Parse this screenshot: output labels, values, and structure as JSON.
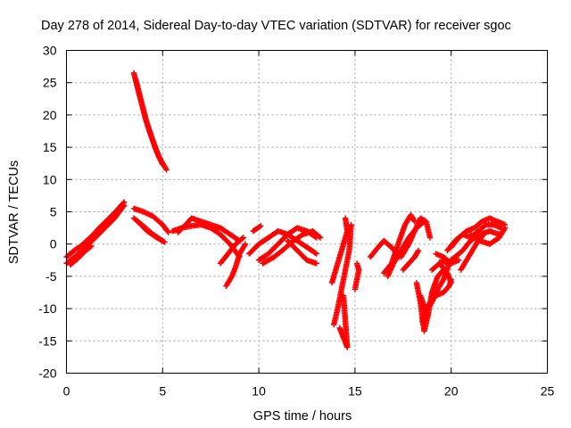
{
  "chart_data": {
    "type": "scatter",
    "title": "Day 278 of 2014, Sidereal Day-to-day VTEC variation (SDTVAR) for receiver sgoc",
    "xlabel": "GPS time / hours",
    "ylabel": "SDTVAR / TECUs",
    "xlim": [
      0,
      25
    ],
    "ylim": [
      -20,
      30
    ],
    "xticks": [
      "0",
      "5",
      "10",
      "15",
      "20",
      "25"
    ],
    "yticks": [
      "-20",
      "-15",
      "-10",
      "-5",
      "0",
      "5",
      "10",
      "15",
      "20",
      "25",
      "30"
    ],
    "grid": true,
    "marker": "+",
    "color": "#ff0000",
    "series": [
      {
        "name": "tracks",
        "tracks": [
          [
            [
              0.0,
              -3.0
            ],
            [
              0.5,
              -1.8
            ],
            [
              1.0,
              -0.5
            ],
            [
              1.5,
              1.0
            ],
            [
              2.0,
              2.5
            ],
            [
              2.5,
              4.0
            ],
            [
              3.0,
              6.0
            ]
          ],
          [
            [
              0.0,
              -2.0
            ],
            [
              0.4,
              -1.0
            ],
            [
              0.8,
              -0.2
            ],
            [
              1.3,
              1.2
            ],
            [
              1.8,
              2.8
            ],
            [
              2.4,
              4.5
            ],
            [
              3.0,
              6.5
            ]
          ],
          [
            [
              0.2,
              -3.2
            ],
            [
              0.6,
              -2.2
            ],
            [
              1.0,
              -1.0
            ],
            [
              1.3,
              -0.3
            ]
          ],
          [
            [
              3.5,
              26.5
            ],
            [
              3.8,
              23.0
            ],
            [
              4.1,
              19.5
            ],
            [
              4.4,
              16.8
            ],
            [
              4.8,
              13.5
            ],
            [
              5.2,
              11.5
            ]
          ],
          [
            [
              3.6,
              25.5
            ],
            [
              3.9,
              22.0
            ],
            [
              4.2,
              18.5
            ],
            [
              4.6,
              15.0
            ],
            [
              5.0,
              12.3
            ]
          ],
          [
            [
              3.5,
              5.5
            ],
            [
              4.0,
              5.0
            ],
            [
              4.5,
              4.3
            ],
            [
              5.0,
              3.0
            ],
            [
              5.3,
              1.8
            ]
          ],
          [
            [
              3.5,
              4.0
            ],
            [
              4.0,
              2.8
            ],
            [
              4.5,
              1.5
            ],
            [
              5.0,
              0.5
            ]
          ],
          [
            [
              3.7,
              3.5
            ],
            [
              4.2,
              2.0
            ],
            [
              4.7,
              1.0
            ],
            [
              5.1,
              0.3
            ]
          ],
          [
            [
              5.8,
              1.8
            ],
            [
              6.2,
              3.0
            ],
            [
              6.5,
              4.0
            ],
            [
              7.0,
              3.5
            ],
            [
              7.5,
              3.0
            ],
            [
              8.0,
              2.5
            ],
            [
              8.5,
              1.5
            ],
            [
              9.0,
              0.5
            ]
          ],
          [
            [
              5.5,
              2.0
            ],
            [
              6.0,
              2.5
            ],
            [
              6.5,
              2.8
            ],
            [
              7.0,
              3.0
            ],
            [
              7.5,
              2.5
            ],
            [
              8.0,
              1.5
            ],
            [
              8.5,
              0.0
            ],
            [
              9.0,
              -2.0
            ]
          ],
          [
            [
              8.0,
              -3.0
            ],
            [
              8.4,
              -1.5
            ],
            [
              8.8,
              0.0
            ],
            [
              9.2,
              1.0
            ]
          ],
          [
            [
              8.3,
              -6.5
            ],
            [
              8.6,
              -5.0
            ],
            [
              8.8,
              -3.5
            ],
            [
              9.0,
              -1.5
            ],
            [
              9.3,
              0.0
            ]
          ],
          [
            [
              9.7,
              2.0
            ],
            [
              10.1,
              2.8
            ]
          ],
          [
            [
              9.5,
              -1.5
            ],
            [
              10.0,
              0.0
            ],
            [
              10.5,
              1.0
            ],
            [
              11.0,
              2.0
            ],
            [
              11.5,
              1.5
            ],
            [
              12.0,
              0.5
            ],
            [
              12.5,
              -0.5
            ],
            [
              13.0,
              -1.5
            ]
          ],
          [
            [
              10.0,
              -2.5
            ],
            [
              10.5,
              -1.5
            ],
            [
              11.0,
              0.0
            ],
            [
              11.5,
              1.5
            ],
            [
              12.0,
              2.5
            ],
            [
              12.5,
              2.0
            ],
            [
              13.0,
              1.0
            ]
          ],
          [
            [
              10.2,
              -3.0
            ],
            [
              10.8,
              -2.0
            ],
            [
              11.3,
              -0.8
            ],
            [
              11.8,
              0.5
            ],
            [
              12.3,
              1.5
            ],
            [
              12.8,
              2.0
            ],
            [
              13.2,
              1.0
            ]
          ],
          [
            [
              11.5,
              0.5
            ],
            [
              12.0,
              -1.0
            ],
            [
              12.5,
              -2.5
            ],
            [
              13.0,
              -3.0
            ]
          ],
          [
            [
              13.8,
              -6.0
            ],
            [
              14.0,
              -4.0
            ],
            [
              14.2,
              -2.0
            ],
            [
              14.4,
              0.0
            ],
            [
              14.6,
              2.0
            ],
            [
              14.5,
              4.0
            ]
          ],
          [
            [
              13.9,
              -12.5
            ],
            [
              14.1,
              -10.0
            ],
            [
              14.3,
              -7.0
            ],
            [
              14.5,
              -4.0
            ],
            [
              14.7,
              -1.0
            ],
            [
              14.8,
              3.0
            ]
          ],
          [
            [
              14.2,
              -13.0
            ],
            [
              14.4,
              -14.5
            ],
            [
              14.6,
              -16.0
            ],
            [
              14.5,
              -12.0
            ],
            [
              14.4,
              -8.0
            ]
          ],
          [
            [
              15.0,
              -7.0
            ],
            [
              15.1,
              -5.5
            ],
            [
              15.2,
              -4.0
            ],
            [
              15.1,
              -3.0
            ]
          ],
          [
            [
              15.8,
              -2.0
            ],
            [
              16.2,
              -0.5
            ],
            [
              16.5,
              0.5
            ],
            [
              16.9,
              -0.5
            ],
            [
              17.3,
              -2.0
            ]
          ],
          [
            [
              16.5,
              -4.5
            ],
            [
              16.9,
              -3.0
            ],
            [
              17.3,
              0.5
            ],
            [
              17.6,
              3.0
            ],
            [
              17.9,
              4.5
            ],
            [
              18.1,
              3.5
            ]
          ],
          [
            [
              16.7,
              -5.0
            ],
            [
              17.0,
              -3.0
            ],
            [
              17.4,
              -1.0
            ],
            [
              17.8,
              1.0
            ],
            [
              18.2,
              2.5
            ],
            [
              18.6,
              3.5
            ]
          ],
          [
            [
              17.4,
              -2.0
            ],
            [
              17.8,
              0.0
            ],
            [
              18.1,
              2.0
            ],
            [
              18.4,
              4.0
            ],
            [
              18.7,
              3.5
            ],
            [
              18.9,
              1.0
            ]
          ],
          [
            [
              17.5,
              -4.0
            ],
            [
              17.8,
              -3.0
            ],
            [
              18.1,
              -2.0
            ],
            [
              18.3,
              -1.0
            ]
          ],
          [
            [
              18.2,
              -6.0
            ],
            [
              18.4,
              -9.0
            ],
            [
              18.5,
              -11.5
            ],
            [
              18.6,
              -13.5
            ],
            [
              18.8,
              -11.0
            ],
            [
              19.0,
              -7.5
            ],
            [
              19.3,
              -5.0
            ],
            [
              19.6,
              -4.0
            ]
          ],
          [
            [
              18.4,
              -8.0
            ],
            [
              18.7,
              -10.5
            ],
            [
              19.0,
              -9.0
            ],
            [
              19.3,
              -7.0
            ],
            [
              19.6,
              -5.5
            ],
            [
              19.9,
              -3.0
            ]
          ],
          [
            [
              18.5,
              -12.0
            ],
            [
              18.8,
              -9.5
            ],
            [
              19.2,
              -8.0
            ],
            [
              19.6,
              -7.5
            ],
            [
              19.9,
              -6.5
            ],
            [
              20.0,
              -5.5
            ]
          ],
          [
            [
              19.0,
              -4.0
            ],
            [
              19.4,
              -3.0
            ],
            [
              19.8,
              -4.5
            ],
            [
              20.0,
              -6.0
            ]
          ],
          [
            [
              19.2,
              -1.5
            ],
            [
              19.6,
              -2.0
            ],
            [
              20.0,
              -3.0
            ],
            [
              20.4,
              -2.5
            ]
          ],
          [
            [
              19.5,
              -2.5
            ],
            [
              19.8,
              -3.0
            ],
            [
              20.2,
              -2.0
            ],
            [
              20.6,
              -1.0
            ],
            [
              21.0,
              0.5
            ],
            [
              21.5,
              1.5
            ],
            [
              22.0,
              2.0
            ],
            [
              22.5,
              1.5
            ]
          ],
          [
            [
              19.8,
              -1.0
            ],
            [
              20.2,
              0.5
            ],
            [
              20.6,
              1.5
            ],
            [
              21.0,
              1.0
            ],
            [
              21.4,
              2.0
            ],
            [
              21.8,
              3.0
            ],
            [
              22.2,
              3.0
            ],
            [
              22.6,
              2.5
            ]
          ],
          [
            [
              20.0,
              -0.5
            ],
            [
              20.4,
              1.0
            ],
            [
              20.8,
              2.0
            ],
            [
              21.2,
              2.5
            ],
            [
              21.6,
              3.5
            ],
            [
              22.0,
              4.0
            ],
            [
              22.4,
              3.5
            ],
            [
              22.8,
              3.0
            ]
          ],
          [
            [
              20.5,
              -4.0
            ],
            [
              20.8,
              -2.5
            ],
            [
              21.1,
              -1.0
            ],
            [
              21.4,
              0.5
            ],
            [
              21.7,
              1.5
            ]
          ],
          [
            [
              21.0,
              1.5
            ],
            [
              21.5,
              0.5
            ],
            [
              22.0,
              0.0
            ],
            [
              22.5,
              1.0
            ],
            [
              22.8,
              2.5
            ]
          ]
        ]
      }
    ]
  }
}
